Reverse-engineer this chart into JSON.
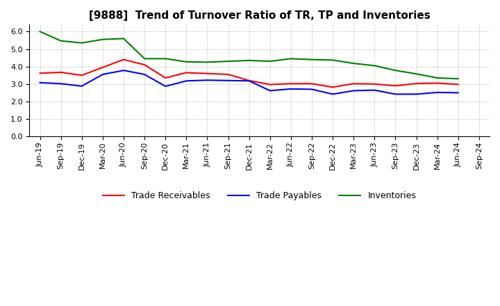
{
  "title": "[9888]  Trend of Turnover Ratio of TR, TP and Inventories",
  "x_labels": [
    "Jun-19",
    "Sep-19",
    "Dec-19",
    "Mar-20",
    "Jun-20",
    "Sep-20",
    "Dec-20",
    "Mar-21",
    "Jun-21",
    "Sep-21",
    "Dec-21",
    "Mar-22",
    "Jun-22",
    "Sep-22",
    "Dec-22",
    "Mar-23",
    "Jun-23",
    "Sep-23",
    "Dec-23",
    "Mar-24",
    "Jun-24",
    "Sep-24"
  ],
  "trade_receivables": [
    3.62,
    3.67,
    3.5,
    3.95,
    4.4,
    4.1,
    3.35,
    3.65,
    3.6,
    3.55,
    3.2,
    2.97,
    3.02,
    3.02,
    2.82,
    3.02,
    3.0,
    2.9,
    3.03,
    3.05,
    2.98,
    null
  ],
  "trade_payables": [
    3.08,
    3.02,
    2.88,
    3.55,
    3.78,
    3.55,
    2.87,
    3.18,
    3.22,
    3.2,
    3.18,
    2.62,
    2.72,
    2.7,
    2.42,
    2.62,
    2.65,
    2.42,
    2.42,
    2.52,
    2.5,
    null
  ],
  "inventories": [
    6.0,
    5.47,
    5.35,
    5.55,
    5.6,
    4.45,
    4.45,
    4.27,
    4.25,
    4.3,
    4.35,
    4.3,
    4.45,
    4.4,
    4.37,
    4.18,
    4.05,
    3.78,
    3.58,
    3.35,
    3.3,
    null
  ],
  "ylim": [
    0.0,
    6.4
  ],
  "yticks": [
    0.0,
    1.0,
    2.0,
    3.0,
    4.0,
    5.0,
    6.0
  ],
  "legend_labels": [
    "Trade Receivables",
    "Trade Payables",
    "Inventories"
  ],
  "line_colors": [
    "#ff0000",
    "#0000ff",
    "#008000"
  ],
  "background_color": "#ffffff",
  "grid_color": "#aaaaaa",
  "title_fontsize": 11,
  "tick_fontsize": 8,
  "legend_fontsize": 9,
  "linewidth": 1.5
}
